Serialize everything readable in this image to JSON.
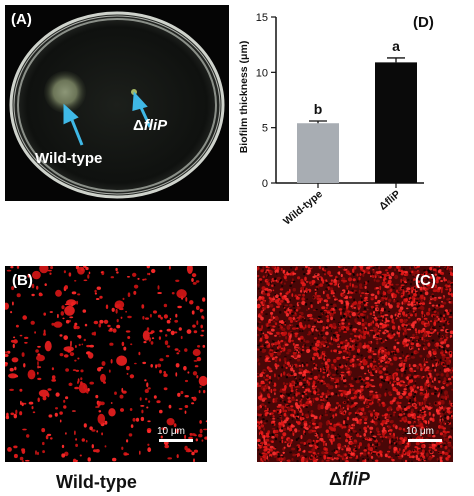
{
  "panels": {
    "a": {
      "tag": "(A)",
      "label_wt": "Wild-type",
      "label_mut_delta": "Δ",
      "label_mut_gene": "fliP"
    },
    "b": {
      "tag": "(B)",
      "scale": "10 μm"
    },
    "c": {
      "tag": "(C)",
      "scale": "10 μm"
    },
    "d": {
      "tag": "(D)"
    }
  },
  "captions": {
    "left": "Wild-type",
    "right_delta": "Δ",
    "right_gene": "fliP"
  },
  "chart_data": {
    "type": "bar",
    "categories": [
      "Wild-type",
      "ΔfliP"
    ],
    "values": [
      5.4,
      10.9
    ],
    "errors": [
      0.2,
      0.4
    ],
    "letters": [
      "b",
      "a"
    ],
    "colors": [
      "#a8adb3",
      "#0a0a0a"
    ],
    "ylabel": "Biofilm thickness (μm)",
    "ylim": [
      0,
      15
    ],
    "yticks": [
      0,
      5,
      10,
      15
    ]
  }
}
